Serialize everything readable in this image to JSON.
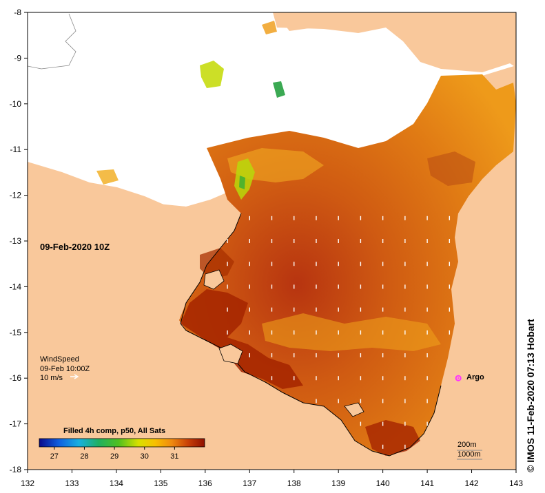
{
  "map": {
    "timestamp": "09-Feb-2020 10Z",
    "credit": "© IMOS 11-Feb-2020 07:13 Hobart",
    "x_ticks": [
      "132",
      "133",
      "134",
      "135",
      "136",
      "137",
      "138",
      "139",
      "140",
      "141",
      "142",
      "143"
    ],
    "y_ticks": [
      "-8",
      "-9",
      "-10",
      "-11",
      "-12",
      "-13",
      "-14",
      "-15",
      "-16",
      "-17",
      "-18"
    ],
    "lon_range": [
      132,
      143
    ],
    "lat_range": [
      -18,
      -8
    ],
    "colors": {
      "land": "#f9c89b",
      "cloud": "#ffffff",
      "sst_warm": "#d86a12",
      "sst_hot": "#a52400",
      "sst_mid": "#f39a1a",
      "sst_cool": "#cde100",
      "sst_cold": "#22a046",
      "arrow": "#ffffff",
      "argo": "#ff33ff"
    }
  },
  "wind_legend": {
    "title": "WindSpeed",
    "time": "09-Feb 10:00Z",
    "speed": "10 m/s",
    "arrow_icon": "right-arrow-icon"
  },
  "argo": {
    "label": "Argo",
    "lon": 141.7,
    "lat": -16.0
  },
  "colorbar": {
    "title": "Filled 4h comp, p50, All Sats",
    "ticks": [
      "27",
      "28",
      "29",
      "30",
      "31"
    ],
    "range": [
      26.5,
      32.0
    ]
  },
  "contours": {
    "line1": "200m",
    "line2": "1000m"
  }
}
